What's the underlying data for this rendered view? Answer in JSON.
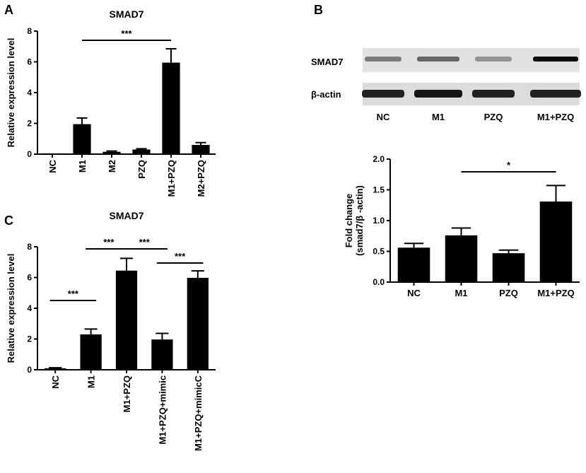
{
  "panels": {
    "a": "A",
    "b": "B",
    "c": "C"
  },
  "colors": {
    "bar": "#000000",
    "axis": "#000000",
    "background": "#ffffff"
  },
  "blot": {
    "row_labels": [
      "SMAD7",
      "β-actin"
    ],
    "lanes": [
      "NC",
      "M1",
      "PZQ",
      "M1+PZQ"
    ],
    "smad7_band_intensity": [
      0.45,
      0.55,
      0.35,
      0.95
    ],
    "actin_band_intensity": [
      0.85,
      0.9,
      0.85,
      0.85
    ]
  },
  "chart_data": [
    {
      "id": "A",
      "type": "bar",
      "title": "SMAD7",
      "ylabel": "Relative expression level",
      "xlabel": "",
      "ylim": [
        0,
        8
      ],
      "yticks": [
        0,
        2,
        4,
        6,
        8
      ],
      "categories": [
        "NC",
        "M1",
        "M2",
        "PZQ",
        "M1+PZQ",
        "M2+PZQ"
      ],
      "values": [
        0.05,
        1.95,
        0.15,
        0.3,
        5.95,
        0.6
      ],
      "errors": [
        0.0,
        0.4,
        0.05,
        0.05,
        0.9,
        0.15
      ],
      "significance": [
        {
          "from": 1,
          "to": 4,
          "label": "***"
        }
      ]
    },
    {
      "id": "B",
      "type": "bar",
      "title": "",
      "ylabel": "Fold change",
      "ylabel2": "(smad7/β -actin)",
      "xlabel": "",
      "ylim": [
        0,
        2.0
      ],
      "yticks": [
        0.0,
        0.5,
        1.0,
        1.5,
        2.0
      ],
      "yticklabels": [
        "0.0",
        "0.5",
        "1.0",
        "1.5",
        "2.0"
      ],
      "categories": [
        "NC",
        "M1",
        "PZQ",
        "M1+PZQ"
      ],
      "values": [
        0.56,
        0.76,
        0.47,
        1.31
      ],
      "errors": [
        0.07,
        0.12,
        0.05,
        0.26
      ],
      "significance": [
        {
          "from": 1,
          "to": 3,
          "label": "*"
        }
      ]
    },
    {
      "id": "C",
      "type": "bar",
      "title": "SMAD7",
      "ylabel": "Relative expression level",
      "xlabel": "",
      "ylim": [
        0,
        8
      ],
      "yticks": [
        0,
        2,
        4,
        6,
        8
      ],
      "categories": [
        "NC",
        "M1",
        "M1+PZQ",
        "M1+PZQ+mimic",
        "M1+PZQ+mimicC"
      ],
      "values": [
        0.1,
        2.3,
        6.45,
        1.97,
        5.98
      ],
      "errors": [
        0.03,
        0.35,
        0.8,
        0.4,
        0.45
      ],
      "significance": [
        {
          "from": 0,
          "to": 1,
          "label": "***"
        },
        {
          "from": 1,
          "to": 2,
          "label": "***"
        },
        {
          "from": 2,
          "to": 3,
          "label": "***"
        },
        {
          "from": 3,
          "to": 4,
          "label": "***"
        }
      ]
    }
  ]
}
